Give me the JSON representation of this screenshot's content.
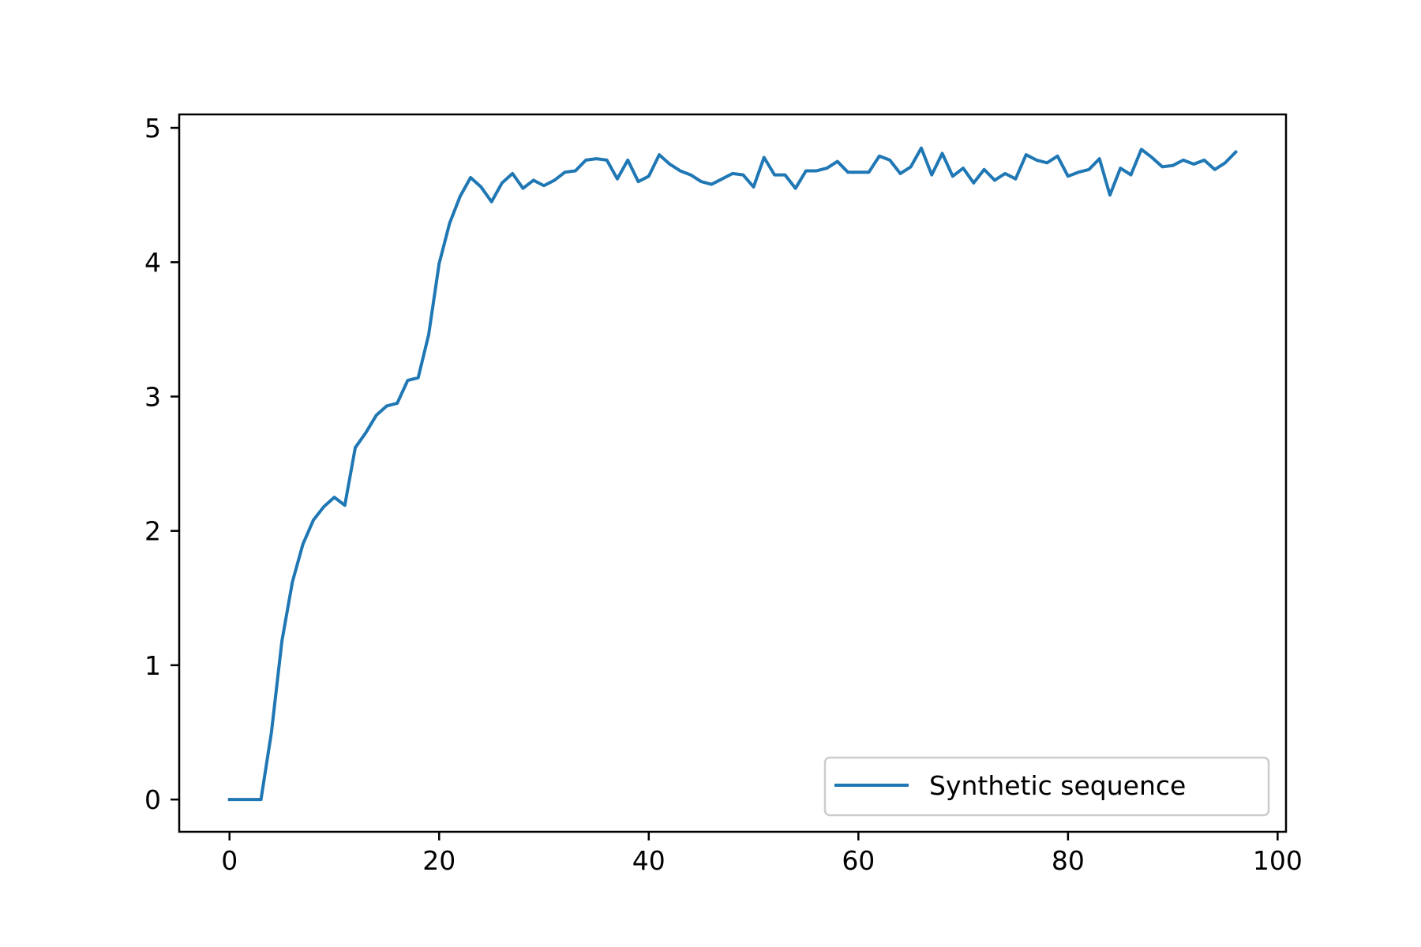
{
  "chart_data": {
    "type": "line",
    "title": "",
    "xlabel": "",
    "ylabel": "",
    "xlim": [
      -4.8,
      100.8
    ],
    "ylim": [
      -0.24,
      5.1
    ],
    "xticks": [
      0,
      20,
      40,
      60,
      80,
      100
    ],
    "yticks": [
      0,
      1,
      2,
      3,
      4,
      5
    ],
    "grid": false,
    "legend_position": "lower-right",
    "series": [
      {
        "name": "Synthetic sequence",
        "color": "#1f77b4",
        "x": [
          0,
          1,
          2,
          3,
          4,
          5,
          6,
          7,
          8,
          9,
          10,
          11,
          12,
          13,
          14,
          15,
          16,
          17,
          18,
          19,
          20,
          21,
          22,
          23,
          24,
          25,
          26,
          27,
          28,
          29,
          30,
          31,
          32,
          33,
          34,
          35,
          36,
          37,
          38,
          39,
          40,
          41,
          42,
          43,
          44,
          45,
          46,
          47,
          48,
          49,
          50,
          51,
          52,
          53,
          54,
          55,
          56,
          57,
          58,
          59,
          60,
          61,
          62,
          63,
          64,
          65,
          66,
          67,
          68,
          69,
          70,
          71,
          72,
          73,
          74,
          75,
          76,
          77,
          78,
          79,
          80,
          81,
          82,
          83,
          84,
          85,
          86,
          87,
          88,
          89,
          90,
          91,
          92,
          93,
          94,
          95,
          96
        ],
        "values": [
          0,
          0,
          0,
          0,
          0.5,
          1.18,
          1.62,
          1.9,
          2.08,
          2.18,
          2.25,
          2.19,
          2.62,
          2.73,
          2.86,
          2.93,
          2.95,
          3.12,
          3.14,
          3.46,
          3.99,
          4.29,
          4.49,
          4.63,
          4.56,
          4.45,
          4.59,
          4.66,
          4.55,
          4.61,
          4.57,
          4.61,
          4.67,
          4.68,
          4.76,
          4.77,
          4.76,
          4.62,
          4.76,
          4.6,
          4.64,
          4.8,
          4.73,
          4.68,
          4.65,
          4.6,
          4.58,
          4.62,
          4.66,
          4.65,
          4.56,
          4.78,
          4.65,
          4.65,
          4.55,
          4.68,
          4.68,
          4.7,
          4.75,
          4.67,
          4.67,
          4.67,
          4.79,
          4.76,
          4.66,
          4.71,
          4.85,
          4.65,
          4.81,
          4.64,
          4.7,
          4.59,
          4.69,
          4.61,
          4.66,
          4.62,
          4.8,
          4.76,
          4.74,
          4.79,
          4.64,
          4.67,
          4.69,
          4.77,
          4.5,
          4.7,
          4.65,
          4.84,
          4.78,
          4.71,
          4.72,
          4.76,
          4.73,
          4.76,
          4.69,
          4.74,
          4.82
        ]
      }
    ]
  }
}
